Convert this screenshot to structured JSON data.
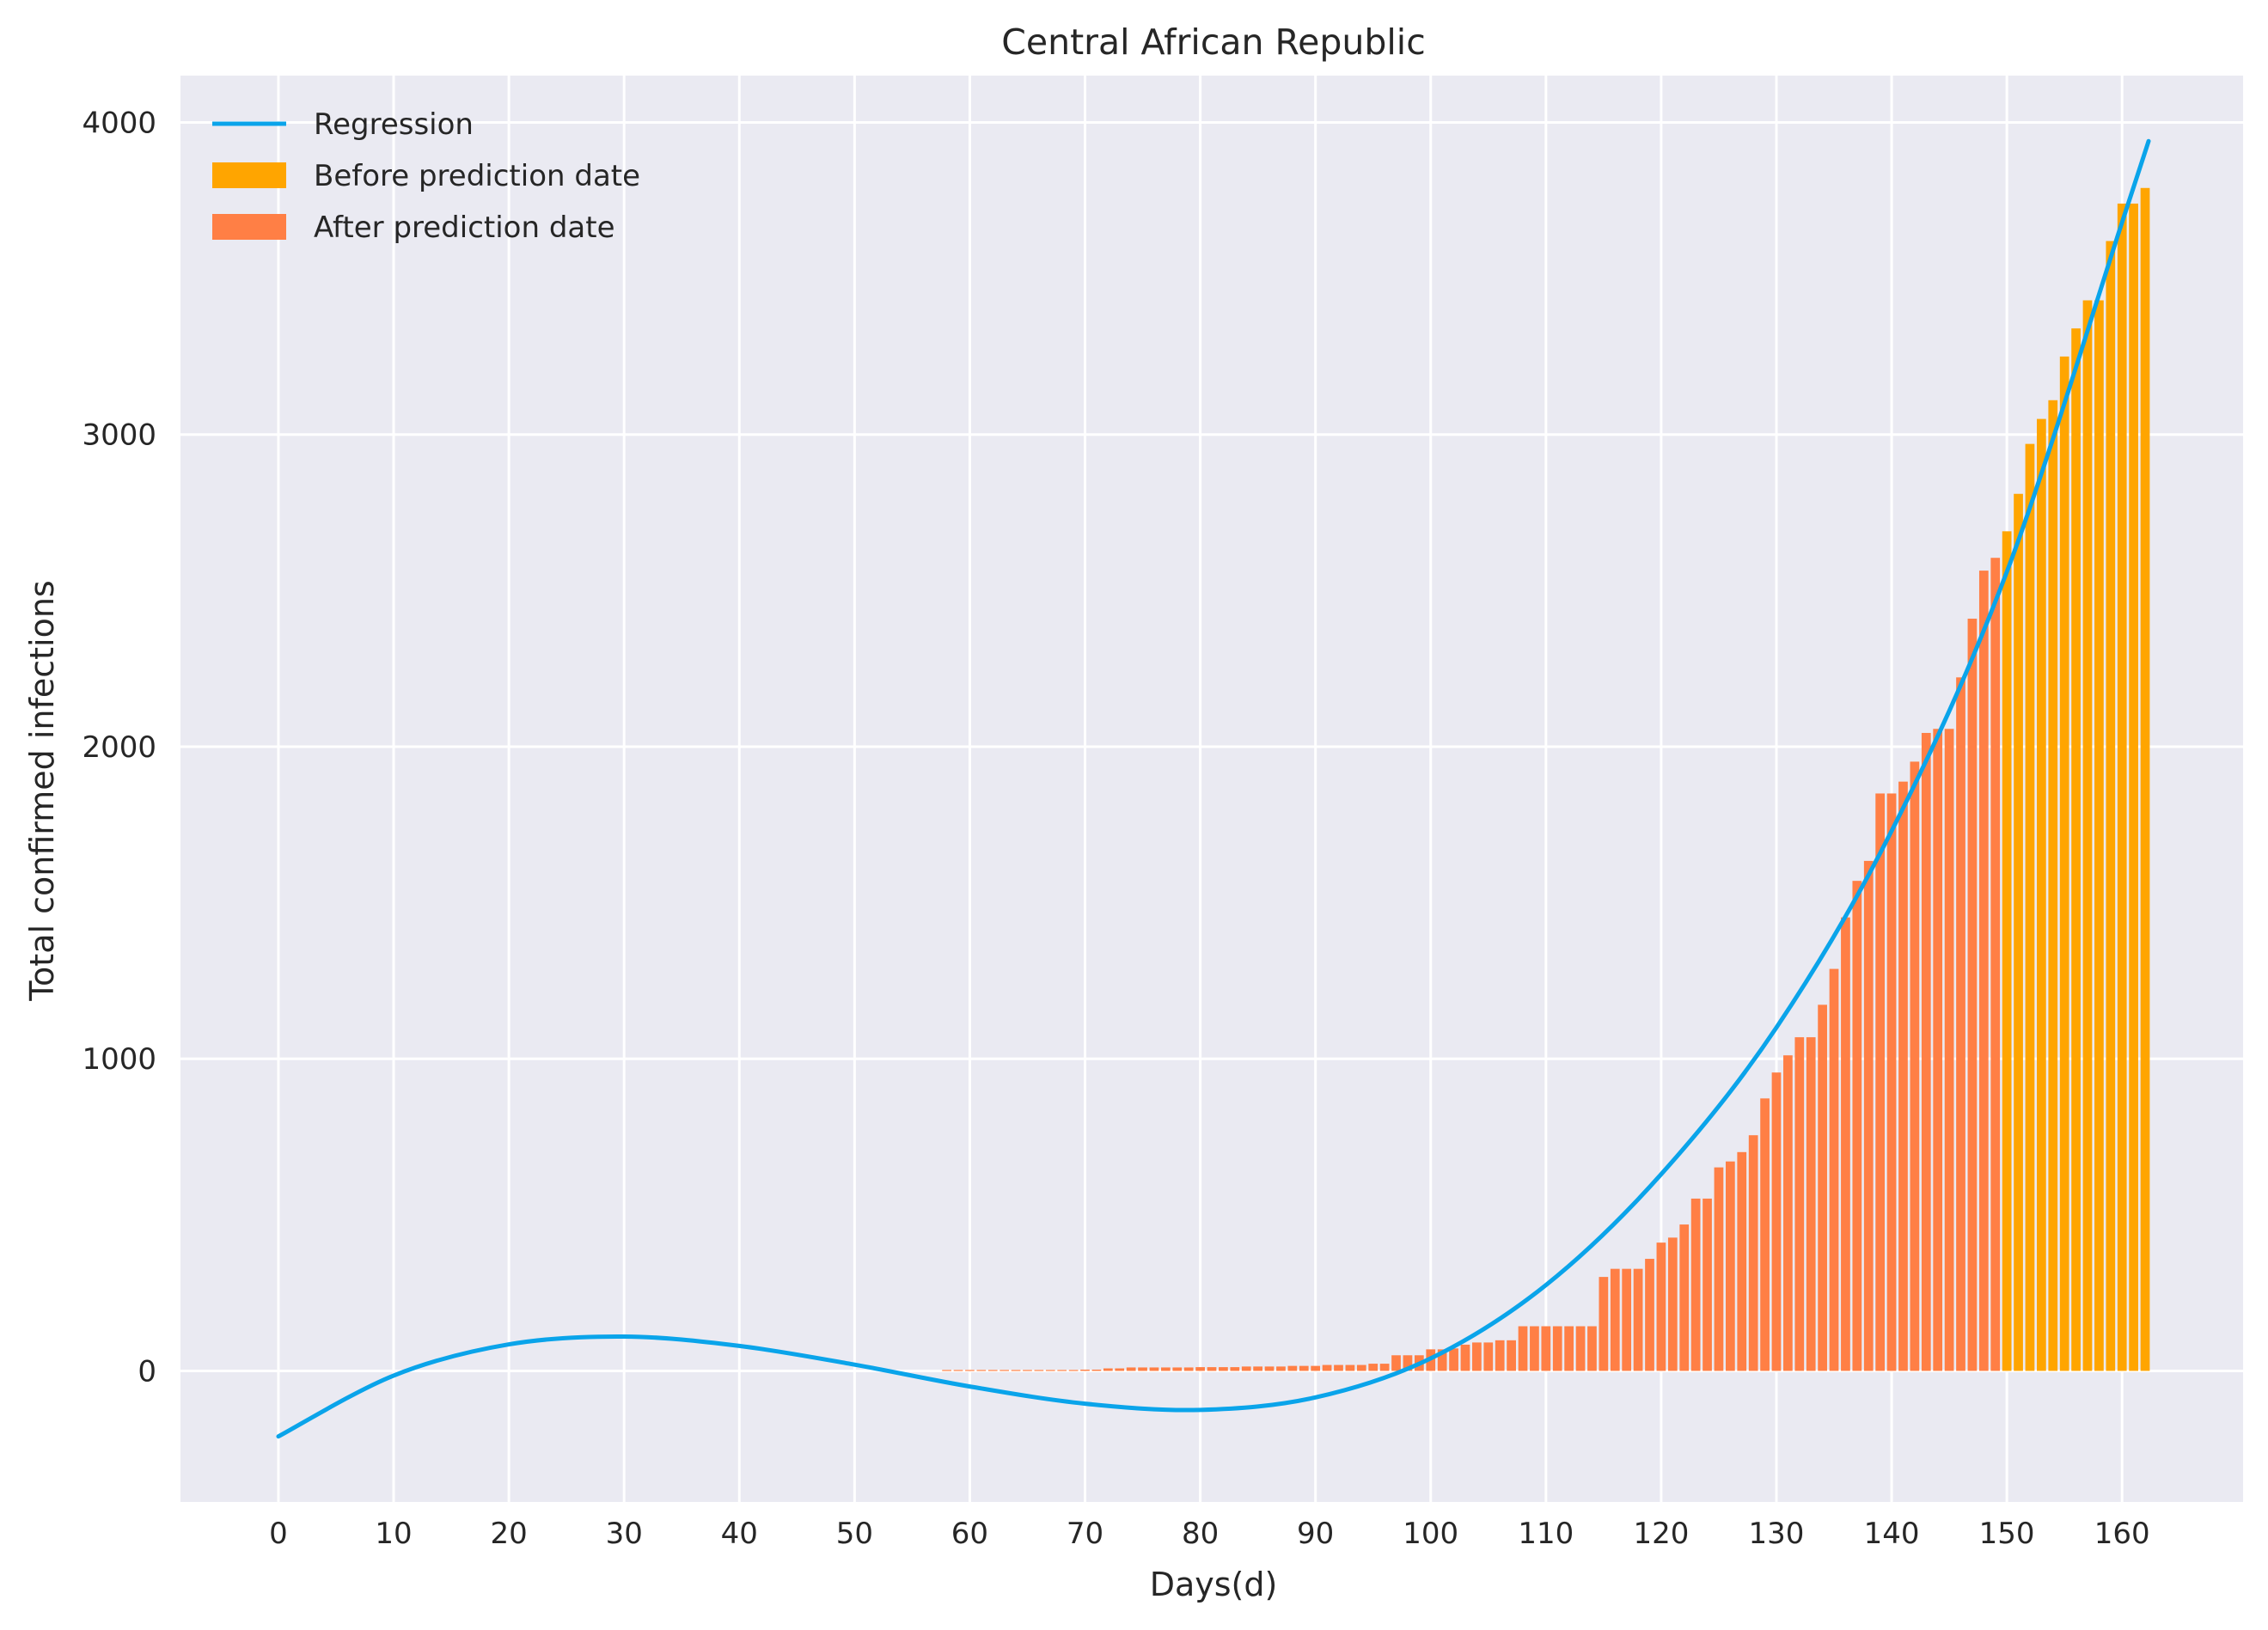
{
  "chart_data": {
    "type": "bar",
    "title": "Central African Republic",
    "xlabel": "Days(d)",
    "ylabel": "Total confirmed infections",
    "xlim": [
      -8.5,
      170.5
    ],
    "ylim": [
      -420,
      4150
    ],
    "xticks": [
      0,
      10,
      20,
      30,
      40,
      50,
      60,
      70,
      80,
      90,
      100,
      110,
      120,
      130,
      140,
      150,
      160
    ],
    "yticks": [
      0,
      1000,
      2000,
      3000,
      4000
    ],
    "grid": true,
    "legend_position": "top-left",
    "legend": [
      "Regression",
      "Before prediction date",
      "After prediction date"
    ],
    "colors": {
      "plot_background": "#EAEAF2",
      "grid": "#FFFFFF",
      "regression": "#0AA4EA",
      "before_prediction": "#FFA500",
      "after_prediction": "#FF7F45"
    },
    "series": [
      {
        "name": "Before prediction date",
        "type": "bar",
        "x": [
          150,
          151,
          152,
          153,
          154,
          155,
          156,
          157,
          158,
          159,
          160,
          161,
          162
        ],
        "values": [
          2690,
          2810,
          2970,
          3050,
          3110,
          3250,
          3340,
          3430,
          3430,
          3620,
          3740,
          3740,
          3790
        ]
      },
      {
        "name": "After prediction date",
        "type": "bar",
        "x": [
          58,
          59,
          60,
          61,
          62,
          63,
          64,
          65,
          66,
          67,
          68,
          69,
          70,
          71,
          72,
          73,
          74,
          75,
          76,
          77,
          78,
          79,
          80,
          81,
          82,
          83,
          84,
          85,
          86,
          87,
          88,
          89,
          90,
          91,
          92,
          93,
          94,
          95,
          96,
          97,
          98,
          99,
          100,
          101,
          102,
          103,
          104,
          105,
          106,
          107,
          108,
          109,
          110,
          111,
          112,
          113,
          114,
          115,
          116,
          117,
          118,
          119,
          120,
          121,
          122,
          123,
          124,
          125,
          126,
          127,
          128,
          129,
          130,
          131,
          132,
          133,
          134,
          135,
          136,
          137,
          138,
          139,
          140,
          141,
          142,
          143,
          144,
          145,
          146,
          147,
          148,
          149
        ],
        "values": [
          3,
          3,
          3,
          3,
          3,
          3,
          3,
          3,
          3,
          3,
          3,
          3,
          4,
          4,
          8,
          8,
          11,
          11,
          11,
          11,
          11,
          11,
          12,
          12,
          12,
          12,
          14,
          14,
          14,
          14,
          16,
          16,
          16,
          19,
          19,
          19,
          19,
          23,
          23,
          50,
          50,
          50,
          69,
          69,
          72,
          84,
          91,
          91,
          98,
          98,
          143,
          143,
          143,
          143,
          143,
          143,
          143,
          301,
          327,
          327,
          327,
          359,
          411,
          427,
          469,
          552,
          552,
          652,
          671,
          701,
          755,
          873,
          956,
          1011,
          1069,
          1069,
          1173,
          1288,
          1453,
          1570,
          1634,
          1850,
          1850,
          1888,
          1952,
          2044,
          2057,
          2057,
          2222,
          2410,
          2564,
          2605
        ]
      }
    ],
    "regression": {
      "name": "Regression",
      "x": [
        0,
        10,
        20,
        30,
        40,
        50,
        60,
        70,
        80,
        90,
        100,
        110,
        120,
        130,
        140,
        150,
        160,
        162.3
      ],
      "y": [
        -210,
        -15,
        85,
        110,
        80,
        20,
        -50,
        -105,
        -125,
        -85,
        40,
        275,
        630,
        1100,
        1730,
        2560,
        3680,
        3940
      ]
    }
  }
}
